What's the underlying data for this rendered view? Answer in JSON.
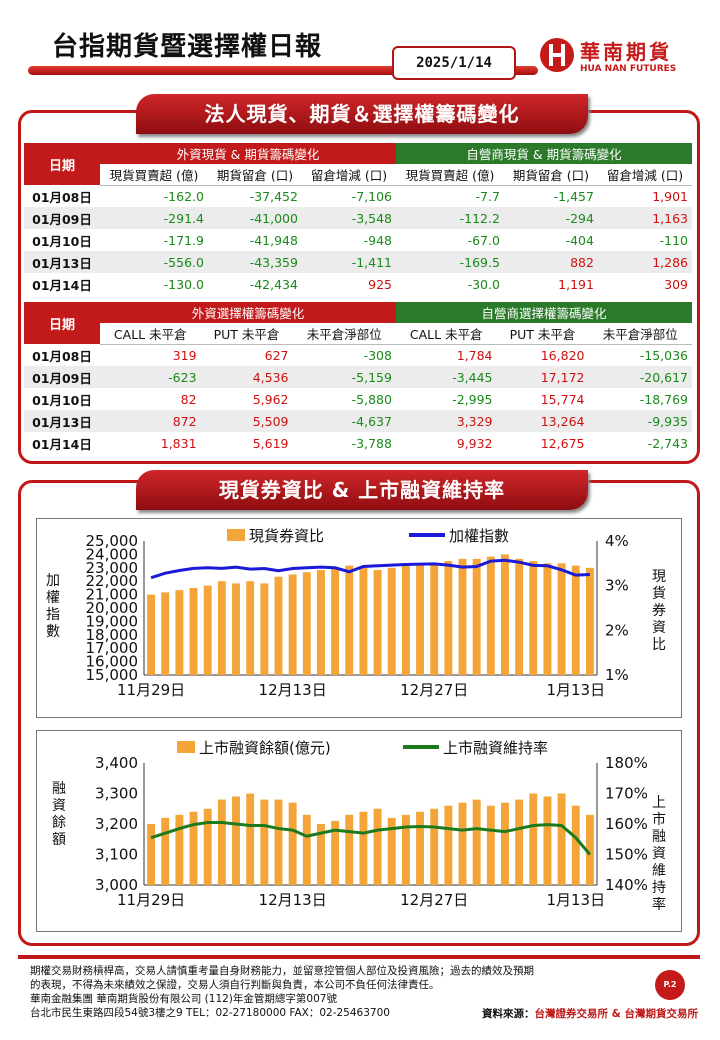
{
  "header": {
    "title": "台指期貨暨選擇權日報",
    "date": "2025/1/14",
    "logo_cn": "華南期貨",
    "logo_en": "HUA NAN FUTURES"
  },
  "section1": {
    "banner": "法人現貨、期貨＆選擇權籌碼變化",
    "table1": {
      "date_header": "日期",
      "group_left": "外資現貨 & 期貨籌碼變化",
      "group_right": "自營商現貨 & 期貨籌碼變化",
      "columns": [
        "現貨買賣超 (億)",
        "期貨留倉 (口)",
        "留倉增減 (口)",
        "現貨買賣超 (億)",
        "期貨留倉 (口)",
        "留倉增減 (口)"
      ],
      "rows": [
        {
          "date": "01月08日",
          "v": [
            "-162.0",
            "-37,452",
            "-7,106",
            "-7.7",
            "-1,457",
            "1,901"
          ]
        },
        {
          "date": "01月09日",
          "v": [
            "-291.4",
            "-41,000",
            "-3,548",
            "-112.2",
            "-294",
            "1,163"
          ]
        },
        {
          "date": "01月10日",
          "v": [
            "-171.9",
            "-41,948",
            "-948",
            "-67.0",
            "-404",
            "-110"
          ]
        },
        {
          "date": "01月13日",
          "v": [
            "-556.0",
            "-43,359",
            "-1,411",
            "-169.5",
            "882",
            "1,286"
          ]
        },
        {
          "date": "01月14日",
          "v": [
            "-130.0",
            "-42,434",
            "925",
            "-30.0",
            "1,191",
            "309"
          ]
        }
      ]
    },
    "table2": {
      "date_header": "日期",
      "group_left": "外資選擇權籌碼變化",
      "group_right": "自營商選擇權籌碼變化",
      "columns": [
        "CALL 未平倉",
        "PUT 未平倉",
        "未平倉淨部位",
        "CALL 未平倉",
        "PUT 未平倉",
        "未平倉淨部位"
      ],
      "rows": [
        {
          "date": "01月08日",
          "v": [
            "319",
            "627",
            "-308",
            "1,784",
            "16,820",
            "-15,036"
          ]
        },
        {
          "date": "01月09日",
          "v": [
            "-623",
            "4,536",
            "-5,159",
            "-3,445",
            "17,172",
            "-20,617"
          ]
        },
        {
          "date": "01月10日",
          "v": [
            "82",
            "5,962",
            "-5,880",
            "-2,995",
            "15,774",
            "-18,769"
          ]
        },
        {
          "date": "01月13日",
          "v": [
            "872",
            "5,509",
            "-4,637",
            "3,329",
            "13,264",
            "-9,935"
          ]
        },
        {
          "date": "01月14日",
          "v": [
            "1,831",
            "5,619",
            "-3,788",
            "9,932",
            "12,675",
            "-2,743"
          ]
        }
      ]
    }
  },
  "section2": {
    "banner": "現貨券資比 & 上市融資維持率"
  },
  "chart_data": [
    {
      "type": "bar+line",
      "title": "",
      "legend": [
        "現貨券資比",
        "加權指數"
      ],
      "legend_position": "top",
      "ylabel_left": "加權指數",
      "ylabel_right": "現貨券資比",
      "ylim_left": [
        15000,
        25000
      ],
      "yticks_left": [
        "15,000",
        "16,000",
        "17,000",
        "18,000",
        "19,000",
        "20,000",
        "21,000",
        "22,000",
        "23,000",
        "24,000",
        "25,000"
      ],
      "ylim_right": [
        1,
        4
      ],
      "yticks_right": [
        "1%",
        "2%",
        "3%",
        "4%"
      ],
      "xticks": [
        "11月29日",
        "12月13日",
        "12月27日",
        "1月13日"
      ],
      "x": [
        "11/29",
        "12/2",
        "12/3",
        "12/4",
        "12/5",
        "12/6",
        "12/9",
        "12/10",
        "12/11",
        "12/12",
        "12/13",
        "12/16",
        "12/17",
        "12/18",
        "12/19",
        "12/20",
        "12/23",
        "12/24",
        "12/25",
        "12/26",
        "12/27",
        "12/30",
        "12/31",
        "1/2",
        "1/3",
        "1/6",
        "1/7",
        "1/8",
        "1/9",
        "1/10",
        "1/13",
        "1/14"
      ],
      "series": [
        {
          "name": "現貨券資比",
          "kind": "bar",
          "axis": "right",
          "color": "#f4a53a",
          "values": [
            2.8,
            2.85,
            2.9,
            2.95,
            3.0,
            3.1,
            3.05,
            3.1,
            3.05,
            3.2,
            3.25,
            3.3,
            3.35,
            3.4,
            3.45,
            3.4,
            3.35,
            3.4,
            3.45,
            3.5,
            3.5,
            3.55,
            3.6,
            3.6,
            3.65,
            3.7,
            3.6,
            3.55,
            3.5,
            3.5,
            3.45,
            3.4
          ]
        },
        {
          "name": "加權指數",
          "kind": "line",
          "axis": "left",
          "color": "#1a1ad8",
          "values": [
            22260,
            22600,
            22800,
            22960,
            23000,
            22960,
            23050,
            22900,
            22950,
            22780,
            22950,
            23000,
            23050,
            23000,
            22700,
            23100,
            23150,
            23200,
            23250,
            23270,
            23290,
            23200,
            23050,
            23100,
            23500,
            23560,
            23420,
            23180,
            23150,
            22850,
            22450,
            22500
          ]
        }
      ]
    },
    {
      "type": "bar+line",
      "title": "",
      "legend": [
        "上市融資餘額(億元)",
        "上市融資維持率"
      ],
      "legend_position": "top",
      "ylabel_left": "融資餘額",
      "ylabel_right": "上市融資維持率",
      "ylim_left": [
        3000,
        3400
      ],
      "yticks_left": [
        "3,000",
        "3,100",
        "3,200",
        "3,300",
        "3,400"
      ],
      "ylim_right": [
        140,
        180
      ],
      "yticks_right": [
        "140%",
        "150%",
        "160%",
        "170%",
        "180%"
      ],
      "xticks": [
        "11月29日",
        "12月13日",
        "12月27日",
        "1月13日"
      ],
      "x": [
        "11/29",
        "12/2",
        "12/3",
        "12/4",
        "12/5",
        "12/6",
        "12/9",
        "12/10",
        "12/11",
        "12/12",
        "12/13",
        "12/16",
        "12/17",
        "12/18",
        "12/19",
        "12/20",
        "12/23",
        "12/24",
        "12/25",
        "12/26",
        "12/27",
        "12/30",
        "12/31",
        "1/2",
        "1/3",
        "1/6",
        "1/7",
        "1/8",
        "1/9",
        "1/10",
        "1/13",
        "1/14"
      ],
      "series": [
        {
          "name": "上市融資餘額(億元)",
          "kind": "bar",
          "axis": "left",
          "color": "#f4a53a",
          "values": [
            3200,
            3220,
            3230,
            3240,
            3250,
            3280,
            3290,
            3300,
            3280,
            3280,
            3270,
            3230,
            3200,
            3210,
            3230,
            3240,
            3250,
            3220,
            3230,
            3240,
            3250,
            3260,
            3270,
            3280,
            3260,
            3270,
            3280,
            3300,
            3290,
            3300,
            3260,
            3230
          ]
        },
        {
          "name": "上市融資維持率",
          "kind": "line",
          "axis": "right",
          "color": "#1c7a1c",
          "values": [
            155.5,
            157,
            158.5,
            159.8,
            160.5,
            160.5,
            160,
            159.5,
            159.5,
            158.5,
            158,
            156,
            157,
            158,
            157.5,
            157,
            158,
            158.5,
            159,
            159.2,
            159,
            158.5,
            158,
            158.5,
            158,
            157.5,
            158.5,
            159.5,
            159.8,
            159.5,
            155.5,
            150
          ]
        }
      ]
    }
  ],
  "footer": {
    "disclaimer_1": "期權交易財務槓桿高，交易人請慎重考量自身財務能力，並留意控管個人部位及投資風險；過去的績效及預期",
    "disclaimer_2": "的表現，不得為未來績效之保證，交易人須自行判斷與負責，本公司不負任何法律責任。",
    "company": "華南金融集團 華南期貨股份有限公司 (112)年金管期總字第007號",
    "address": "台北市民生東路四段54號3樓之9  TEL：02-27180000  FAX：02-25463700",
    "page": "P.2",
    "source_label": "資料來源：",
    "source_value": "台灣證券交易所 & 台灣期貨交易所"
  },
  "colors": {
    "accent_red": "#c01818",
    "accent_green": "#2a7a2a",
    "positive": "#d01010",
    "negative": "#1a8a1a"
  }
}
